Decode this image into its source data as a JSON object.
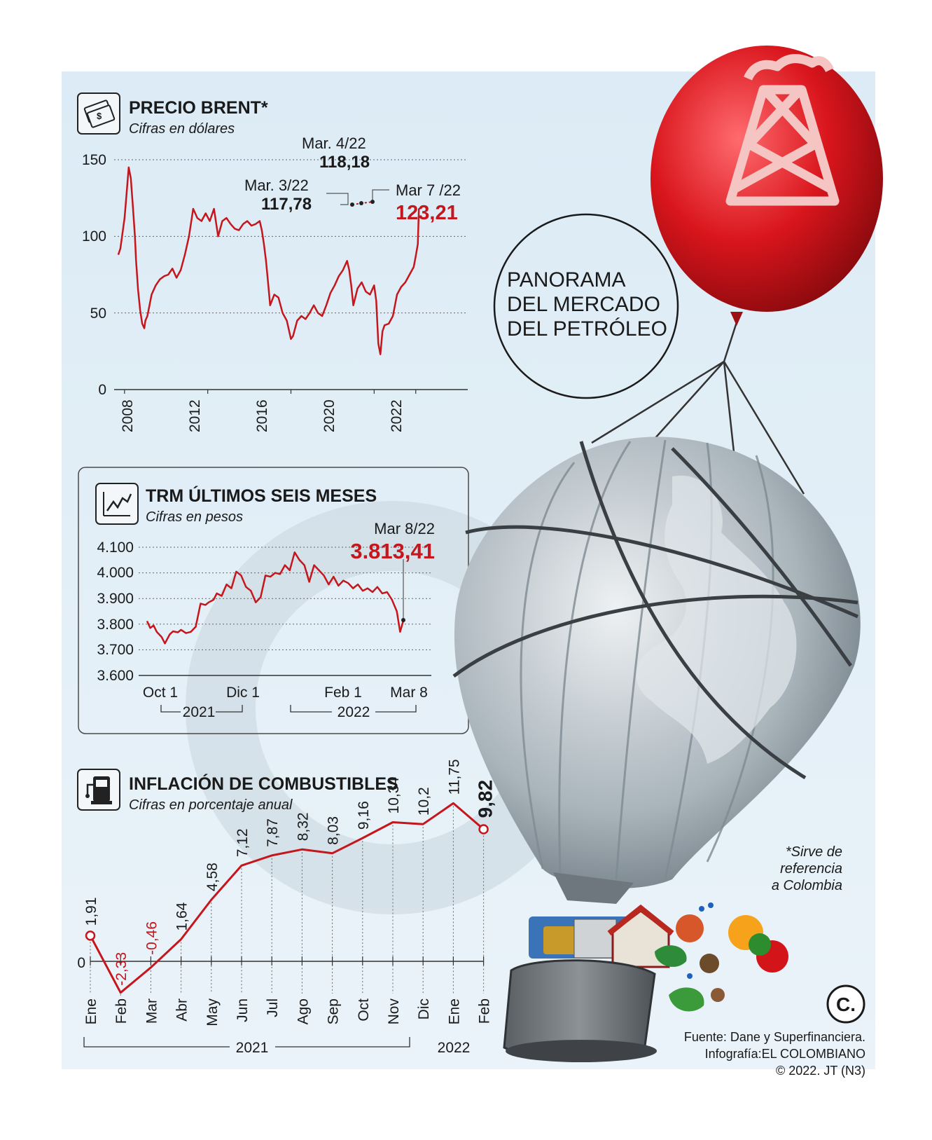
{
  "headline": [
    "PANORAMA",
    "DEL MERCADO",
    "DEL PETRÓLEO"
  ],
  "footnote": [
    "*Sirve de",
    "referencia",
    "a Colombia"
  ],
  "credits": [
    "Fuente: Dane y Superfinanciera.",
    "Infografía:EL COLOMBIANO",
    "© 2022. JT (N3)"
  ],
  "logo_letter": "C.",
  "colors": {
    "accent": "#c4161c",
    "background": "#e3eef6",
    "grid": "#777777"
  },
  "icons": {
    "brent": "money-icon",
    "trm": "trend-chart-icon",
    "fuel": "fuel-pump-icon"
  },
  "chart_data": [
    {
      "type": "line",
      "title": "PRECIO BRENT*",
      "subtitle": "Cifras en dólares",
      "yticks": [
        "150",
        "100",
        "50",
        "0"
      ],
      "ylim": [
        0,
        150
      ],
      "xticks": [
        "2008",
        "2012",
        "2016",
        "2020",
        "2022"
      ],
      "xlim": [
        2007.5,
        2024.5
      ],
      "x": [
        2007.7,
        2007.8,
        2007.9,
        2008.0,
        2008.1,
        2008.2,
        2008.3,
        2008.4,
        2008.5,
        2008.55,
        2008.65,
        2008.75,
        2008.85,
        2008.95,
        2009.0,
        2009.1,
        2009.3,
        2009.5,
        2009.7,
        2009.9,
        2010.1,
        2010.3,
        2010.5,
        2010.7,
        2010.9,
        2011.1,
        2011.3,
        2011.5,
        2011.7,
        2011.9,
        2012.1,
        2012.3,
        2012.5,
        2012.7,
        2012.9,
        2013.1,
        2013.3,
        2013.5,
        2013.7,
        2013.9,
        2014.1,
        2014.3,
        2014.5,
        2014.6,
        2014.7,
        2014.8,
        2014.9,
        2015.0,
        2015.2,
        2015.4,
        2015.6,
        2015.8,
        2016.0,
        2016.1,
        2016.3,
        2016.5,
        2016.7,
        2016.9,
        2017.1,
        2017.3,
        2017.5,
        2017.7,
        2017.9,
        2018.1,
        2018.3,
        2018.5,
        2018.7,
        2018.8,
        2018.9,
        2019.0,
        2019.2,
        2019.4,
        2019.6,
        2019.8,
        2020.0,
        2020.1,
        2020.2,
        2020.3,
        2020.4,
        2020.5,
        2020.7,
        2020.9,
        2021.1,
        2021.3,
        2021.5,
        2021.7,
        2021.9,
        2022.0,
        2022.1,
        2022.15,
        2022.2
      ],
      "y": [
        88,
        92,
        102,
        112,
        128,
        145,
        138,
        120,
        100,
        85,
        65,
        52,
        43,
        40,
        45,
        48,
        62,
        68,
        72,
        74,
        75,
        79,
        73,
        78,
        88,
        100,
        118,
        112,
        110,
        115,
        110,
        118,
        100,
        110,
        112,
        108,
        105,
        104,
        108,
        110,
        107,
        108,
        110,
        104,
        95,
        84,
        70,
        55,
        62,
        60,
        50,
        45,
        33,
        35,
        45,
        48,
        46,
        50,
        55,
        50,
        48,
        55,
        63,
        68,
        74,
        78,
        84,
        78,
        68,
        55,
        66,
        70,
        64,
        62,
        68,
        58,
        30,
        23,
        38,
        42,
        43,
        48,
        62,
        67,
        70,
        75,
        80,
        87,
        95,
        117.78,
        118.18
      ],
      "annotations": [
        {
          "label": "Mar. 3/22",
          "value": "117,78"
        },
        {
          "label": "Mar. 4/22",
          "value": "118,18"
        },
        {
          "label": "Mar 7 /22",
          "value": "123,21"
        }
      ]
    },
    {
      "type": "line",
      "title": "TRM ÚLTIMOS SEIS MESES",
      "subtitle": "Cifras en pesos",
      "yticks": [
        "4.100",
        "4.000",
        "3.900",
        "3.800",
        "3.700",
        "3.600"
      ],
      "ylim": [
        3600,
        4100
      ],
      "xticks": [
        "Oct 1",
        "Dic 1",
        "Feb 1",
        "Mar 8"
      ],
      "year_brackets": [
        "2021",
        "2022"
      ],
      "x": [
        0,
        2,
        4,
        6,
        9,
        11,
        14,
        16,
        19,
        21,
        24,
        27,
        30,
        33,
        36,
        38,
        41,
        43,
        46,
        49,
        52,
        55,
        58,
        61,
        64,
        67,
        70,
        73,
        76,
        79,
        82,
        85,
        88,
        91,
        94,
        97,
        100,
        103,
        106,
        109,
        112,
        115,
        118,
        121,
        124,
        127,
        130,
        133,
        136,
        139,
        142,
        145,
        148,
        151,
        154,
        156,
        158
      ],
      "y": [
        3812,
        3785,
        3795,
        3770,
        3750,
        3725,
        3760,
        3772,
        3768,
        3778,
        3765,
        3770,
        3790,
        3880,
        3875,
        3885,
        3895,
        3920,
        3910,
        3955,
        3940,
        4005,
        3990,
        3945,
        3930,
        3885,
        3905,
        3990,
        3985,
        4000,
        3995,
        4030,
        4010,
        4080,
        4050,
        4030,
        3965,
        4030,
        4010,
        3990,
        3955,
        3985,
        3950,
        3970,
        3960,
        3940,
        3955,
        3930,
        3940,
        3925,
        3945,
        3920,
        3925,
        3895,
        3850,
        3770,
        3813.41
      ],
      "annotations": [
        {
          "label": "Mar 8/22",
          "value": "3.813,41"
        }
      ]
    },
    {
      "type": "line",
      "title": "INFLACIÓN DE COMBUSTIBLES",
      "subtitle": "Cifras en porcentaje anual",
      "categories": [
        "Ene",
        "Feb",
        "Mar",
        "Abr",
        "May",
        "Jun",
        "Jul",
        "Ago",
        "Sep",
        "Oct",
        "Nov",
        "Dic",
        "Ene",
        "Feb"
      ],
      "values": [
        1.91,
        -2.33,
        -0.46,
        1.64,
        4.58,
        7.12,
        7.87,
        8.32,
        8.03,
        9.16,
        10.34,
        10.2,
        11.75,
        9.82
      ],
      "value_labels": [
        "1,91",
        "-2,33",
        "-0,46",
        "1,64",
        "4,58",
        "7,12",
        "7,87",
        "8,32",
        "8,03",
        "9,16",
        "10,34",
        "10,2",
        "11,75",
        "9,82"
      ],
      "ytick": "0",
      "year_brackets": [
        "2021",
        "2022"
      ]
    }
  ]
}
